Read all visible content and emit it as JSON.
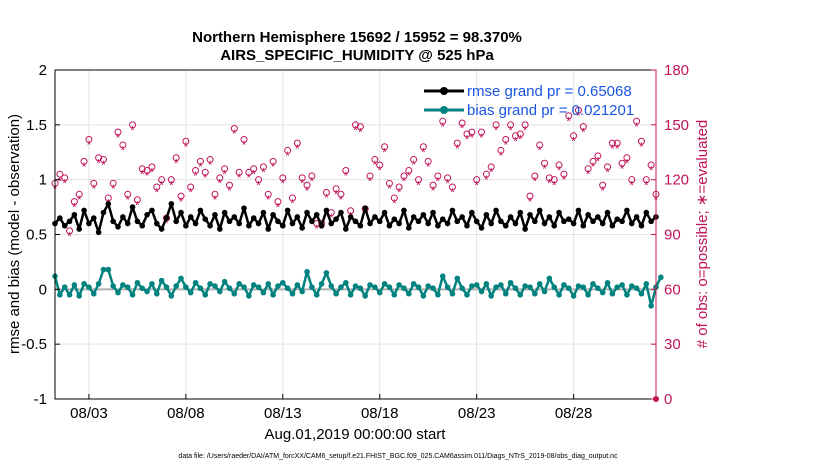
{
  "chart_data": {
    "type": "line",
    "title_line1": "Northern Hemisphere 15692 / 15952 = 98.370%",
    "title_line2": "AIRS_SPECIFIC_HUMIDITY @ 525 hPa",
    "ylabel_left": "rmse and bias (model - observation)",
    "ylabel_right": "# of obs: o=possible; ∗=evaluated",
    "xlabel": "Aug.01,2019 00:00:00 start",
    "footnote": "data file: /Users/raeder/DAI/ATM_forcXX/CAM6_setup/f.e21.FHIST_BGC.f09_025.CAM6assim.011/Diags_NTrS_2019-08/obs_diag_output.nc",
    "ylim_left": [
      -1,
      2
    ],
    "ylim_right": [
      0,
      180
    ],
    "xlim": [
      1.25,
      32.25
    ],
    "yticks_left": [
      "-1",
      "-0.5",
      "0",
      "0.5",
      "1",
      "1.5",
      "2"
    ],
    "yticks_right": [
      "0",
      "30",
      "60",
      "90",
      "120",
      "150",
      "180"
    ],
    "xticks": [
      {
        "value": 3,
        "label": "08/03"
      },
      {
        "value": 8,
        "label": "08/08"
      },
      {
        "value": 13,
        "label": "08/13"
      },
      {
        "value": 18,
        "label": "08/18"
      },
      {
        "value": 23,
        "label": "08/23"
      },
      {
        "value": 28,
        "label": "08/28"
      }
    ],
    "legend": [
      {
        "name": "rmse grand pr = 0.65068",
        "color": "#000000"
      },
      {
        "name": "bias grand pr = 0.021201",
        "color": "#00827f"
      }
    ],
    "colors": {
      "rmse": "#000000",
      "bias": "#00827f",
      "obs": "#c0145a",
      "zero": "#b0b0b0",
      "legend_text": "#1a55e0"
    },
    "x_start": 1.25,
    "x_step": 0.25,
    "rmse": [
      0.6,
      0.65,
      0.58,
      0.62,
      0.68,
      0.55,
      0.72,
      0.6,
      0.65,
      0.52,
      0.7,
      0.78,
      0.62,
      0.57,
      0.66,
      0.6,
      0.75,
      0.62,
      0.58,
      0.68,
      0.72,
      0.6,
      0.55,
      0.65,
      0.78,
      0.62,
      0.7,
      0.58,
      0.66,
      0.6,
      0.72,
      0.64,
      0.58,
      0.68,
      0.55,
      0.7,
      0.62,
      0.66,
      0.6,
      0.74,
      0.58,
      0.65,
      0.6,
      0.7,
      0.55,
      0.68,
      0.62,
      0.58,
      0.72,
      0.6,
      0.66,
      0.56,
      0.7,
      0.62,
      0.68,
      0.58,
      0.72,
      0.6,
      0.64,
      0.7,
      0.55,
      0.66,
      0.62,
      0.58,
      0.74,
      0.6,
      0.66,
      0.62,
      0.7,
      0.58,
      0.64,
      0.6,
      0.72,
      0.56,
      0.66,
      0.62,
      0.68,
      0.6,
      0.7,
      0.58,
      0.64,
      0.6,
      0.72,
      0.62,
      0.66,
      0.58,
      0.7,
      0.62,
      0.56,
      0.68,
      0.6,
      0.72,
      0.62,
      0.58,
      0.66,
      0.6,
      0.7,
      0.55,
      0.68,
      0.62,
      0.72,
      0.6,
      0.66,
      0.58,
      0.7,
      0.62,
      0.64,
      0.6,
      0.72,
      0.58,
      0.68,
      0.62,
      0.66,
      0.6,
      0.7,
      0.58,
      0.64,
      0.62,
      0.72,
      0.6,
      0.66,
      0.58,
      0.7,
      0.62,
      0.66
    ],
    "bias": [
      0.12,
      -0.05,
      0.02,
      -0.05,
      0.04,
      -0.06,
      0.05,
      0.02,
      -0.04,
      0.05,
      0.18,
      0.18,
      0.03,
      -0.03,
      0.04,
      0.02,
      -0.05,
      0.06,
      0.01,
      -0.02,
      0.05,
      -0.04,
      0.08,
      0.02,
      -0.06,
      0.03,
      0.1,
      0.02,
      -0.03,
      0.06,
      0.01,
      -0.05,
      0.05,
      0.03,
      -0.02,
      0.07,
      0.01,
      -0.04,
      0.05,
      0.02,
      -0.06,
      0.04,
      0.02,
      -0.03,
      0.05,
      -0.05,
      0.03,
      0.06,
      0.01,
      -0.04,
      0.04,
      -0.02,
      0.16,
      0.02,
      -0.05,
      0.05,
      0.15,
      0.03,
      -0.04,
      0.02,
      0.06,
      -0.05,
      0.03,
      0.01,
      -0.06,
      0.04,
      0.02,
      -0.03,
      0.05,
      0.02,
      -0.05,
      0.04,
      0.01,
      -0.04,
      0.05,
      0.02,
      -0.06,
      0.03,
      0.01,
      -0.05,
      0.12,
      0.02,
      -0.04,
      0.1,
      0.01,
      -0.05,
      0.03,
      0.04,
      -0.02,
      0.05,
      -0.06,
      0.02,
      0.04,
      -0.04,
      0.06,
      0.01,
      -0.05,
      0.03,
      0.02,
      -0.04,
      0.05,
      -0.02,
      0.1,
      0.02,
      -0.05,
      0.04,
      0.01,
      -0.06,
      0.03,
      0.02,
      -0.05,
      0.05,
      0.01,
      -0.03,
      0.06,
      -0.04,
      0.02,
      0.04,
      -0.05,
      0.03,
      0.01,
      -0.04,
      0.05,
      -0.15,
      0.02,
      0.11
    ],
    "obs_possible": [
      118,
      123,
      121,
      92,
      108,
      112,
      130,
      142,
      118,
      132,
      131,
      110,
      118,
      146,
      139,
      112,
      150,
      109,
      126,
      125,
      127,
      116,
      120,
      99,
      120,
      132,
      111,
      141,
      116,
      125,
      130,
      124,
      131,
      112,
      121,
      126,
      117,
      148,
      124,
      142,
      124,
      126,
      120,
      127,
      112,
      130,
      108,
      121,
      136,
      110,
      140,
      121,
      117,
      122,
      96,
      96,
      113,
      102,
      115,
      112,
      125,
      103,
      150,
      149,
      104,
      122,
      131,
      128,
      138,
      118,
      110,
      116,
      122,
      125,
      131,
      120,
      138,
      130,
      117,
      122,
      152,
      121,
      116,
      140,
      151,
      145,
      146,
      120,
      146,
      123,
      127,
      150,
      136,
      142,
      150,
      144,
      145,
      150,
      111,
      122,
      139,
      129,
      121,
      120,
      128,
      123,
      155,
      144,
      158,
      149,
      126,
      130,
      133,
      117,
      127,
      140,
      140,
      129,
      132,
      120,
      152,
      141,
      120,
      128,
      112
    ],
    "obs_evaluated": [
      116,
      120,
      119,
      90,
      106,
      110,
      128,
      140,
      116,
      130,
      129,
      108,
      116,
      144,
      137,
      110,
      148,
      107,
      124,
      123,
      125,
      114,
      118,
      97,
      118,
      130,
      109,
      139,
      114,
      123,
      128,
      122,
      129,
      110,
      119,
      124,
      115,
      146,
      122,
      140,
      122,
      124,
      118,
      125,
      110,
      128,
      106,
      119,
      134,
      108,
      138,
      119,
      115,
      120,
      94,
      94,
      111,
      100,
      113,
      110,
      123,
      101,
      148,
      147,
      102,
      120,
      129,
      126,
      136,
      116,
      108,
      114,
      120,
      123,
      129,
      118,
      136,
      128,
      115,
      120,
      150,
      119,
      114,
      138,
      149,
      143,
      144,
      118,
      144,
      121,
      125,
      148,
      134,
      140,
      148,
      142,
      143,
      148,
      109,
      120,
      137,
      127,
      119,
      118,
      126,
      121,
      153,
      142,
      156,
      147,
      124,
      128,
      131,
      115,
      125,
      138,
      138,
      127,
      130,
      118,
      150,
      139,
      118,
      126,
      110
    ]
  }
}
